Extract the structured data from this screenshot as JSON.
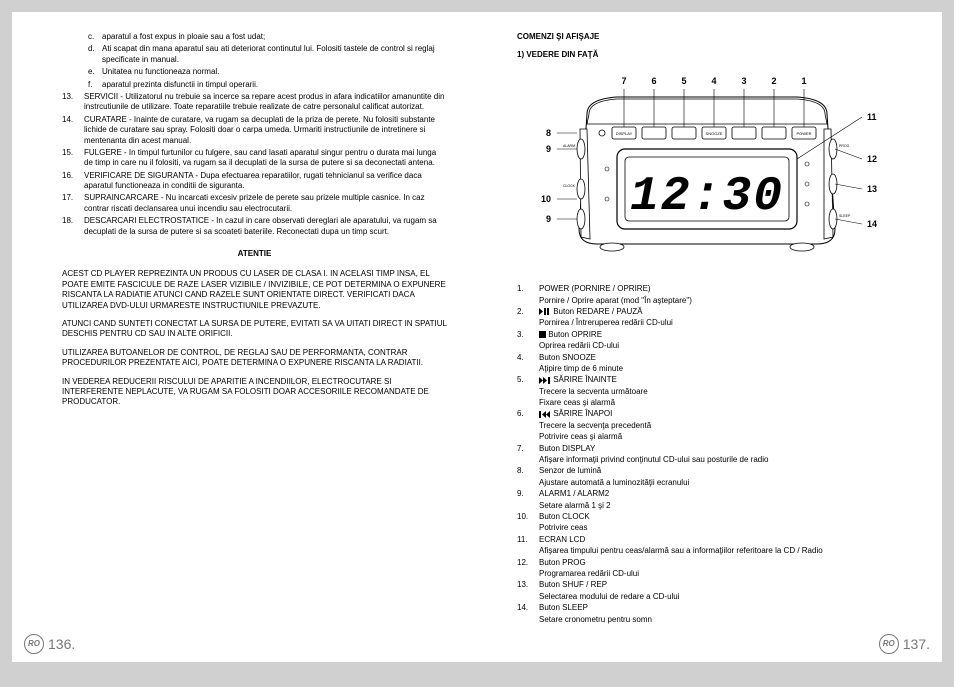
{
  "leftPage": {
    "continuationItems": [
      {
        "letter": "c.",
        "text": "aparatul a fost expus in ploaie sau a fost udat;"
      },
      {
        "letter": "d.",
        "text": "Ati scapat din mana aparatul sau ati deteriorat continutul lui. Folositi tastele de control si reglaj specificate in manual."
      },
      {
        "letter": "e.",
        "text": "Unitatea nu functioneaza normal."
      },
      {
        "letter": "f.",
        "text": "aparatul prezinta disfunctii in timpul operarii."
      }
    ],
    "numberedItems": [
      {
        "num": "13.",
        "text": "SERVICII - Utilizatorul nu trebuie sa incerce sa repare acest produs in afara indicatiilor amanuntite din instrcutiunile de utilizare. Toate reparatiile trebuie realizate de catre personalul calificat autorizat."
      },
      {
        "num": "14.",
        "text": "CURATARE - Inainte de curatare, va rugam sa decuplati de la priza de perete. Nu folositi substante lichide de curatare sau spray. Folositi doar o carpa umeda. Urmariti instructiunile de intretinere si mentenanta din acest manual."
      },
      {
        "num": "15.",
        "text": "FULGERE - In timpul furtunilor cu fulgere, sau cand lasati aparatul singur pentru o durata mai lunga de timp in care nu il folositi, va rugam sa il decuplati de la sursa de putere si sa deconectati antena."
      },
      {
        "num": "16.",
        "text": "VERIFICARE DE SIGURANTA - Dupa efectuarea reparatiilor, rugati tehnicianul sa verifice daca aparatul functioneaza in conditii de siguranta."
      },
      {
        "num": "17.",
        "text": "SUPRAINCARCARE - Nu incarcati excesiv prizele de perete sau prizele multiple casnice. In caz contrar riscati declansarea unui incendiu sau electrocutarii."
      },
      {
        "num": "18.",
        "text": "DESCARCARI ELECTROSTATICE - In cazul in care observati dereglari ale aparatului, va rugam sa decuplati de la sursa de putere si sa scoateti bateriile. Reconectati dupa un timp scurt."
      }
    ],
    "atentieHeading": "ATENTIE",
    "paragraphs": [
      "ACEST CD PLAYER REPREZINTA UN PRODUS CU LASER DE CLASA I. IN ACELASI TIMP INSA, EL POATE EMITE FASCICULE DE RAZE LASER VIZIBILE / INVIZIBILE, CE POT DETERMINA O EXPUNERE RISCANTA LA RADIATIE ATUNCI CAND RAZELE SUNT ORIENTATE DIRECT. VERIFICATI DACA UTILIZAREA DVD-ULUI URMARESTE INSTRUCTIUNILE PREVAZUTE.",
      "ATUNCI CAND SUNTETI CONECTAT LA SURSA DE PUTERE, EVITATI SA VA UITATI DIRECT IN SPATIUL DESCHIS PENTRU CD SAU IN ALTE ORIFICII.",
      "UTILIZAREA BUTOANELOR DE CONTROL, DE REGLAJ SAU DE PERFORMANTA, CONTRAR PROCEDURILOR PREZENTATE AICI, POATE DETERMINA O EXPUNERE RISCANTA LA RADIATII.",
      "IN VEDEREA REDUCERII RISCULUI DE APARITIE A INCENDIILOR, ELECTROCUTARE SI INTERFERENTE NEPLACUTE, VA RUGAM SA FOLOSITI DOAR ACCESORIILE RECOMANDATE DE PRODUCATOR."
    ],
    "pageNumber": "136.",
    "badge": "RO"
  },
  "rightPage": {
    "sectionTitle": "COMENZI ŞI AFIŞAJE",
    "subsection": "1)   VEDERE DIN FAŢĂ",
    "diagram": {
      "callouts_top": [
        "7",
        "6",
        "5",
        "4",
        "3",
        "2",
        "1"
      ],
      "callouts_left": [
        "8",
        "9",
        "10",
        "9"
      ],
      "callouts_right": [
        "11",
        "12",
        "13",
        "14"
      ],
      "display_text": "12:30",
      "button_labels": [
        "DISPLAY",
        "",
        "",
        "SNOOZE",
        "",
        "",
        "POWER"
      ],
      "top_knob_labels_left": [
        "ALARM",
        "CLOCK"
      ],
      "top_knob_labels_right": [
        "PROG",
        "SLEEP"
      ],
      "stroke": "#000000",
      "fill": "#ffffff",
      "callout_font_size": 9
    },
    "features": [
      {
        "num": "1.",
        "label": "POWER (PORNIRE / OPRIRE)",
        "desc": "Pornire / Oprire aparat (mod \"În aşteptare\")"
      },
      {
        "num": "2.",
        "label": "Buton REDARE / PAUZĂ",
        "icon": "play-pause",
        "desc": "Pornirea / Întreruperea redării CD-ului"
      },
      {
        "num": "3.",
        "label": " Buton OPRIRE",
        "icon": "stop",
        "desc": "Oprirea redării CD-ului"
      },
      {
        "num": "4.",
        "label": "Buton SNOOZE",
        "desc": "Aţipire timp de 6 minute"
      },
      {
        "num": "5.",
        "label": "SĂRIRE ÎNAINTE",
        "icon": "skip-fwd",
        "desc": "Trecere la secventa următoare\nFixare ceas şi alarmă"
      },
      {
        "num": "6.",
        "label": " SĂRIRE ÎNAPOI",
        "icon": "skip-back",
        "desc": "Trecere la secvenţa precedentă\nPotrivire ceas şi alarmă"
      },
      {
        "num": "7.",
        "label": "Buton DISPLAY",
        "desc": "Afişare informaţii privind conţinutul CD-ului sau posturile de radio"
      },
      {
        "num": "8.",
        "label": "Senzor de lumină",
        "desc": "Ajustare automată a luminozităţii ecranului"
      },
      {
        "num": "9.",
        "label": "ALARM1 / ALARM2",
        "desc": "Setare alarmă 1 şi 2"
      },
      {
        "num": "10.",
        "label": "Buton CLOCK",
        "desc": "Potrivire ceas"
      },
      {
        "num": "11.",
        "label": "ECRAN LCD",
        "desc": "Afişarea timpului pentru ceas/alarmă sau a informaţiilor  referitoare la CD / Radio"
      },
      {
        "num": "12.",
        "label": "Buton PROG",
        "desc": "Programarea redării CD-ului"
      },
      {
        "num": "13.",
        "label": "Buton SHUF / REP",
        "desc": "Selectarea modului de redare a CD-ului"
      },
      {
        "num": "14.",
        "label": "Buton SLEEP",
        "desc": "Setare cronometru pentru somn"
      }
    ],
    "pageNumber": "137.",
    "badge": "RO"
  }
}
